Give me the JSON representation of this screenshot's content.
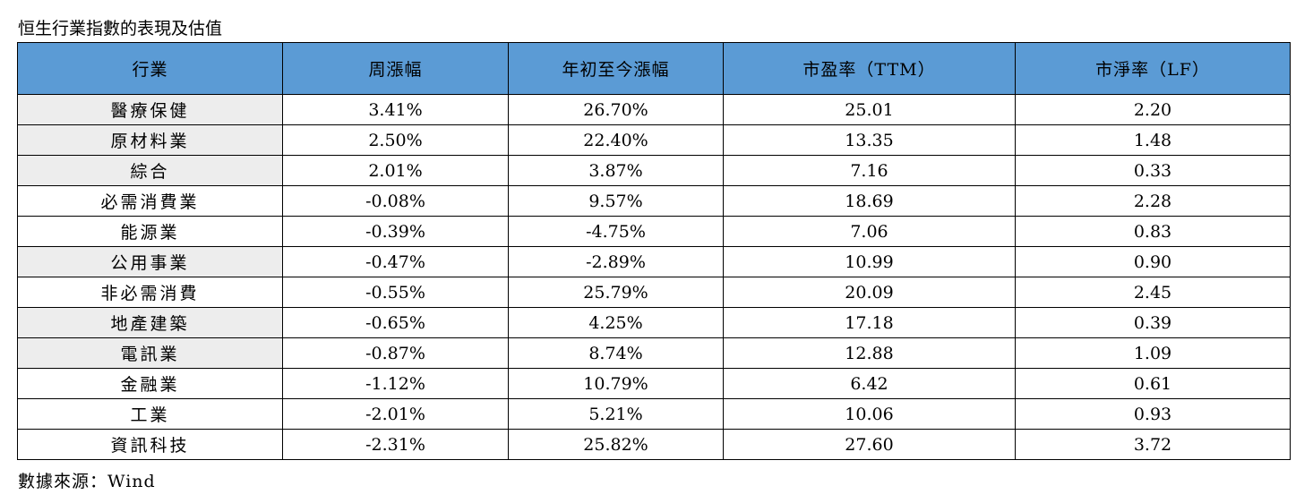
{
  "title": "恒生行業指數的表現及估值",
  "table": {
    "headers": [
      "行業",
      "周漲幅",
      "年初至今漲幅",
      "市盈率（TTM）",
      "市淨率（LF）"
    ],
    "rows": [
      {
        "name": "醫療保健",
        "weekly": "3.41%",
        "ytd": "26.70%",
        "pe": "25.01",
        "pb": "2.20",
        "shaded": true
      },
      {
        "name": "原材料業",
        "weekly": "2.50%",
        "ytd": "22.40%",
        "pe": "13.35",
        "pb": "1.48",
        "shaded": true
      },
      {
        "name": "綜合",
        "weekly": "2.01%",
        "ytd": "3.87%",
        "pe": "7.16",
        "pb": "0.33",
        "shaded": true
      },
      {
        "name": "必需消費業",
        "weekly": "-0.08%",
        "ytd": "9.57%",
        "pe": "18.69",
        "pb": "2.28",
        "shaded": false
      },
      {
        "name": "能源業",
        "weekly": "-0.39%",
        "ytd": "-4.75%",
        "pe": "7.06",
        "pb": "0.83",
        "shaded": false
      },
      {
        "name": "公用事業",
        "weekly": "-0.47%",
        "ytd": "-2.89%",
        "pe": "10.99",
        "pb": "0.90",
        "shaded": true
      },
      {
        "name": "非必需消費",
        "weekly": "-0.55%",
        "ytd": "25.79%",
        "pe": "20.09",
        "pb": "2.45",
        "shaded": false
      },
      {
        "name": "地產建築",
        "weekly": "-0.65%",
        "ytd": "4.25%",
        "pe": "17.18",
        "pb": "0.39",
        "shaded": true
      },
      {
        "name": "電訊業",
        "weekly": "-0.87%",
        "ytd": "8.74%",
        "pe": "12.88",
        "pb": "1.09",
        "shaded": true
      },
      {
        "name": "金融業",
        "weekly": "-1.12%",
        "ytd": "10.79%",
        "pe": "6.42",
        "pb": "0.61",
        "shaded": false
      },
      {
        "name": "工業",
        "weekly": "-2.01%",
        "ytd": "5.21%",
        "pe": "10.06",
        "pb": "0.93",
        "shaded": false
      },
      {
        "name": "資訊科技",
        "weekly": "-2.31%",
        "ytd": "25.82%",
        "pe": "27.60",
        "pb": "3.72",
        "shaded": false
      }
    ]
  },
  "source": "數據來源：Wind",
  "colors": {
    "header_bg": "#5b9bd5",
    "name_shade": "#ededed",
    "border": "#000000"
  }
}
